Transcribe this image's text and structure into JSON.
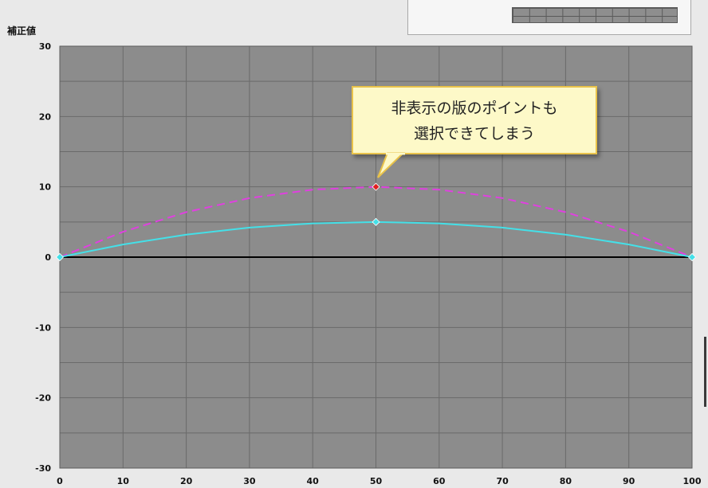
{
  "y_axis_title": "補正値",
  "callout": {
    "line1": "非表示の版のポイントも",
    "line2": "選択できてしまう"
  },
  "chart_data": {
    "type": "line",
    "xlim": [
      0,
      100
    ],
    "ylim": [
      -30,
      30
    ],
    "x_ticks": [
      0,
      10,
      20,
      30,
      40,
      50,
      60,
      70,
      80,
      90,
      100
    ],
    "y_ticks": [
      30,
      20,
      10,
      0,
      -10,
      -20,
      -30
    ],
    "grid": true,
    "minor_y_grid_step": 5,
    "xlabel": "",
    "ylabel": "補正値",
    "series": [
      {
        "style": "dashed",
        "color": "#e040e0",
        "x": [
          0,
          10,
          20,
          30,
          40,
          50,
          60,
          70,
          80,
          90,
          100
        ],
        "y": [
          0,
          3.6,
          6.4,
          8.4,
          9.6,
          10,
          9.6,
          8.4,
          6.4,
          3.6,
          0
        ],
        "control_points": [
          {
            "x": 50,
            "y": 10,
            "color": "#e02020"
          }
        ]
      },
      {
        "style": "solid",
        "color": "#44e0e8",
        "x": [
          0,
          10,
          20,
          30,
          40,
          50,
          60,
          70,
          80,
          90,
          100
        ],
        "y": [
          0,
          1.8,
          3.2,
          4.2,
          4.8,
          5,
          4.8,
          4.2,
          3.2,
          1.8,
          0
        ],
        "control_points": [
          {
            "x": 0,
            "y": 0,
            "color": "#44e0e8"
          },
          {
            "x": 50,
            "y": 5,
            "color": "#44e0e8"
          },
          {
            "x": 100,
            "y": 0,
            "color": "#44e0e8"
          }
        ]
      }
    ],
    "baseline": {
      "y": 0,
      "color": "#000000"
    }
  }
}
